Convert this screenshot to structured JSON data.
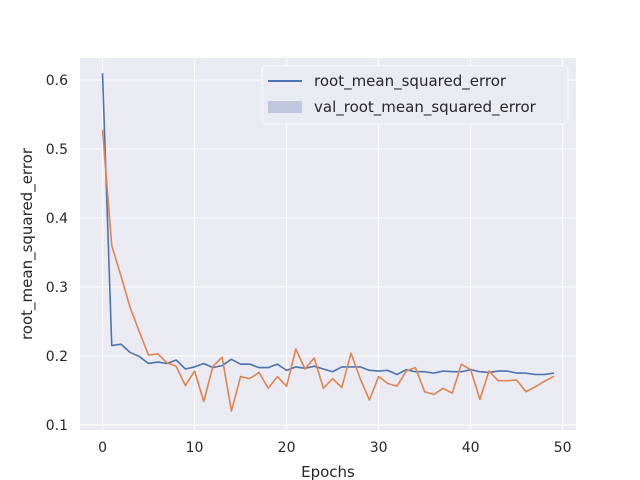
{
  "chart_data": {
    "type": "line",
    "xlabel": "Epochs",
    "ylabel": "root_mean_squared_error",
    "xlim": [
      -2.45,
      51.45
    ],
    "ylim": [
      0.0925,
      0.632
    ],
    "xticks": [
      0,
      10,
      20,
      30,
      40,
      50
    ],
    "yticks": [
      0.1,
      0.2,
      0.3,
      0.4,
      0.5,
      0.6
    ],
    "grid": true,
    "legend_position": "upper right",
    "background": "#eaeaf2",
    "series": [
      {
        "name": "root_mean_squared_error",
        "color": "#4c72b0",
        "legend_marker": "line",
        "x": [
          0,
          1,
          2,
          3,
          4,
          5,
          6,
          7,
          8,
          9,
          10,
          11,
          12,
          13,
          14,
          15,
          16,
          17,
          18,
          19,
          20,
          21,
          22,
          23,
          24,
          25,
          26,
          27,
          28,
          29,
          30,
          31,
          32,
          33,
          34,
          35,
          36,
          37,
          38,
          39,
          40,
          41,
          42,
          43,
          44,
          45,
          46,
          47,
          48,
          49
        ],
        "values": [
          0.609,
          0.215,
          0.217,
          0.205,
          0.199,
          0.189,
          0.191,
          0.189,
          0.194,
          0.181,
          0.184,
          0.189,
          0.183,
          0.186,
          0.195,
          0.188,
          0.188,
          0.183,
          0.183,
          0.188,
          0.179,
          0.184,
          0.182,
          0.185,
          0.181,
          0.177,
          0.184,
          0.184,
          0.184,
          0.179,
          0.178,
          0.179,
          0.173,
          0.18,
          0.177,
          0.177,
          0.175,
          0.178,
          0.177,
          0.177,
          0.18,
          0.177,
          0.176,
          0.178,
          0.178,
          0.175,
          0.175,
          0.173,
          0.173,
          0.175
        ]
      },
      {
        "name": "val_root_mean_squared_error",
        "color": "#dd8452",
        "legend_marker": "patch",
        "legend_color": "#c0c6dc",
        "x": [
          0,
          1,
          2,
          3,
          4,
          5,
          6,
          7,
          8,
          9,
          10,
          11,
          12,
          13,
          14,
          15,
          16,
          17,
          18,
          19,
          20,
          21,
          22,
          23,
          24,
          25,
          26,
          27,
          28,
          29,
          30,
          31,
          32,
          33,
          34,
          35,
          36,
          37,
          38,
          39,
          40,
          41,
          42,
          43,
          44,
          45,
          46,
          47,
          48,
          49
        ],
        "values": [
          0.527,
          0.36,
          0.316,
          0.27,
          0.235,
          0.201,
          0.203,
          0.19,
          0.185,
          0.157,
          0.178,
          0.134,
          0.185,
          0.198,
          0.12,
          0.17,
          0.167,
          0.176,
          0.153,
          0.17,
          0.156,
          0.21,
          0.181,
          0.197,
          0.153,
          0.167,
          0.154,
          0.204,
          0.167,
          0.136,
          0.17,
          0.16,
          0.156,
          0.178,
          0.183,
          0.148,
          0.144,
          0.153,
          0.146,
          0.188,
          0.18,
          0.137,
          0.178,
          0.164,
          0.164,
          0.165,
          0.148,
          0.155,
          0.163,
          0.17
        ]
      }
    ]
  }
}
